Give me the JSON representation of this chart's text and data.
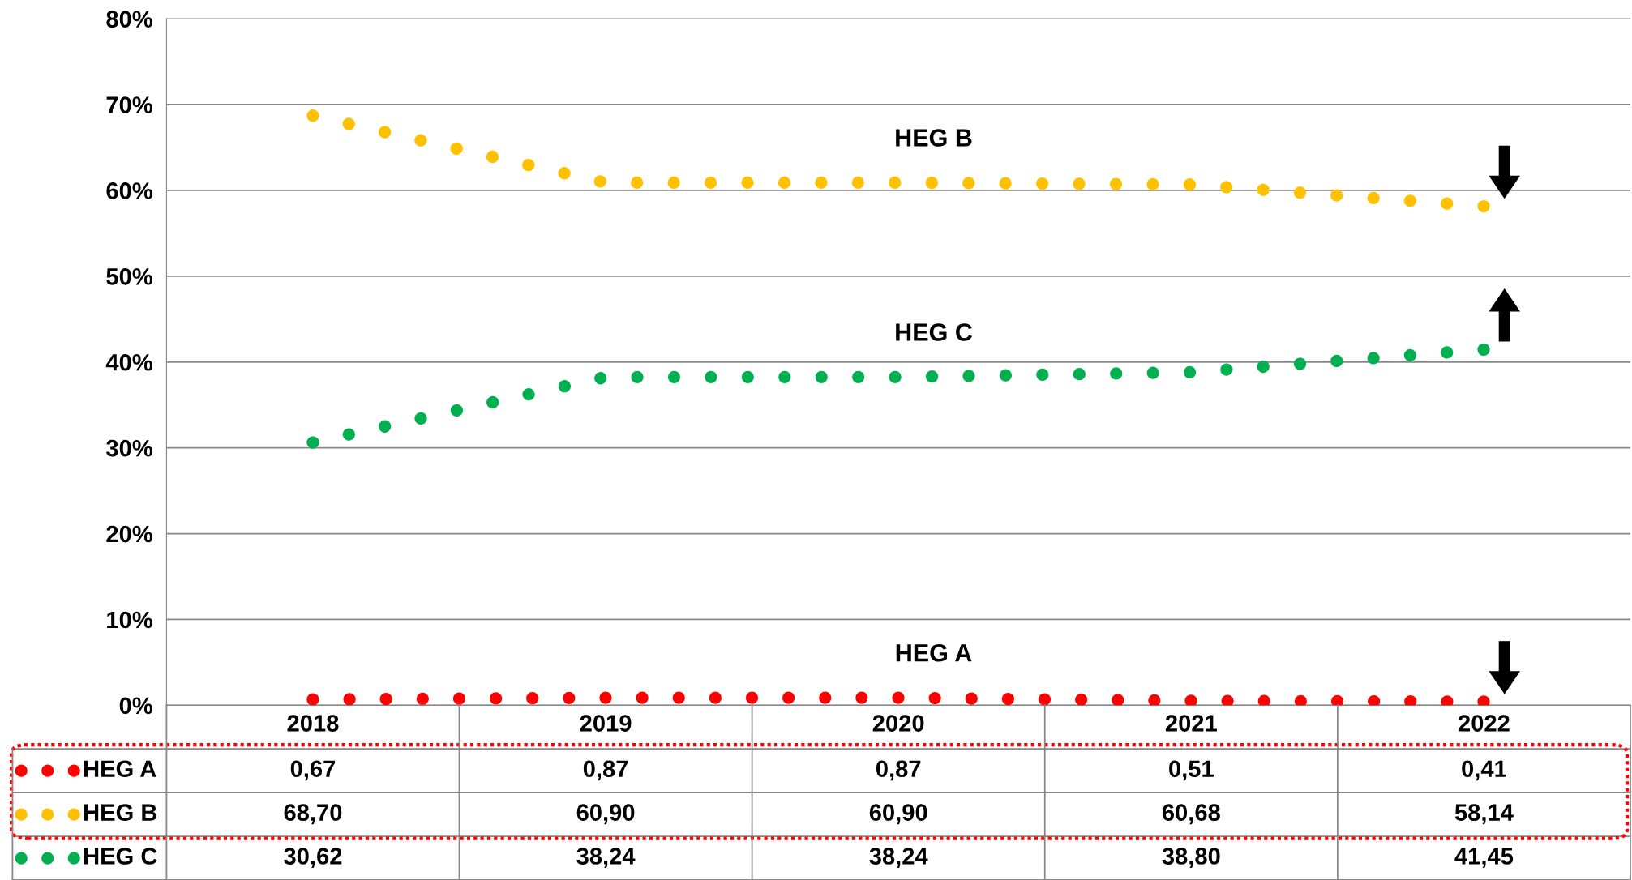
{
  "chart_data": {
    "type": "line",
    "categories": [
      "2018",
      "2019",
      "2020",
      "2021",
      "2022"
    ],
    "series": [
      {
        "name": "HEG A",
        "color": "#ff0000",
        "values": [
          0.67,
          0.87,
          0.87,
          0.51,
          0.41
        ],
        "value_labels": [
          "0,67",
          "0,87",
          "0,87",
          "0,51",
          "0,41"
        ]
      },
      {
        "name": "HEG B",
        "color": "#ffc000",
        "values": [
          68.7,
          60.9,
          60.9,
          60.68,
          58.14
        ],
        "value_labels": [
          "68,70",
          "60,90",
          "60,90",
          "60,68",
          "58,14"
        ]
      },
      {
        "name": "HEG C",
        "color": "#00b050",
        "values": [
          30.62,
          38.24,
          38.24,
          38.8,
          41.45
        ],
        "value_labels": [
          "30,62",
          "38,24",
          "38,24",
          "38,80",
          "41,45"
        ]
      }
    ],
    "ylim": [
      0,
      80
    ],
    "yticks": [
      {
        "value": 0,
        "label": "0%"
      },
      {
        "value": 10,
        "label": "10%"
      },
      {
        "value": 20,
        "label": "20%"
      },
      {
        "value": 30,
        "label": "30%"
      },
      {
        "value": 40,
        "label": "40%"
      },
      {
        "value": 50,
        "label": "50%"
      },
      {
        "value": 60,
        "label": "60%"
      },
      {
        "value": 70,
        "label": "70%"
      },
      {
        "value": 80,
        "label": "80%"
      }
    ],
    "annotations": [
      "HEG A",
      "HEG B",
      "HEG C"
    ],
    "grid": "y",
    "legend": "bottom",
    "marker": "none",
    "line_style": "dotted"
  }
}
